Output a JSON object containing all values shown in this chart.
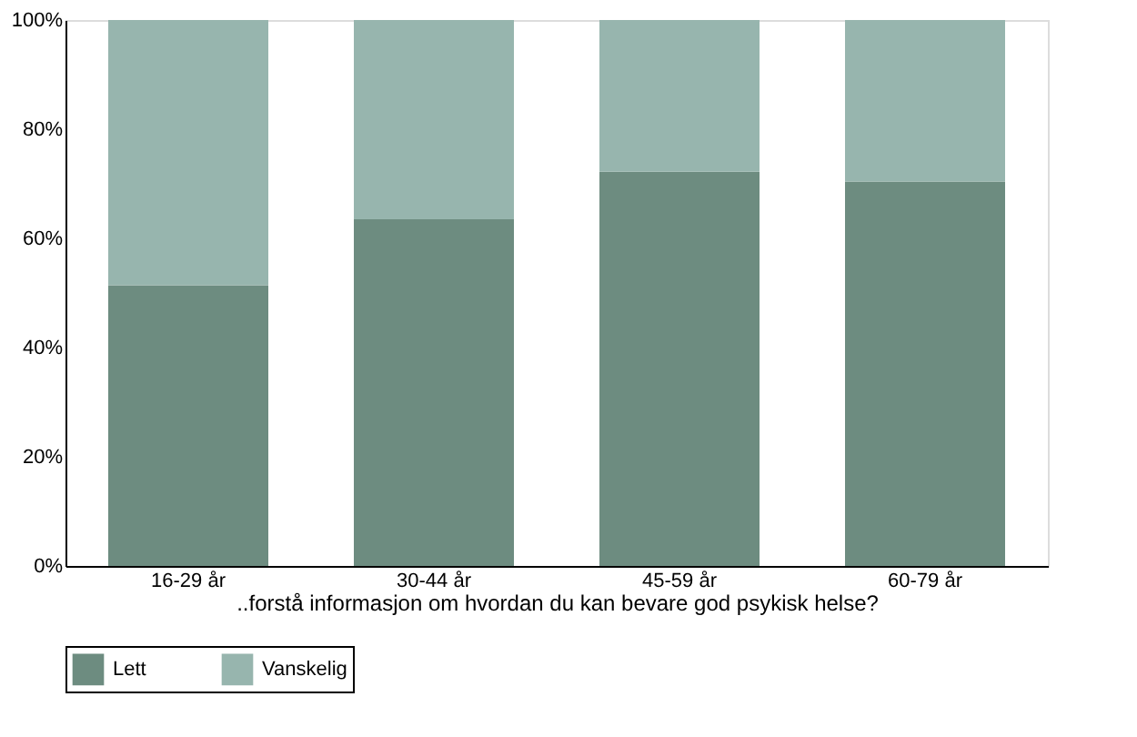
{
  "chart_data": {
    "type": "bar",
    "stacked": true,
    "xlabel": "..forstå informasjon om hvordan du kan bevare god psykisk helse?",
    "categories": [
      "16-29 år",
      "30-44 år",
      "45-59 år",
      "60-79 år"
    ],
    "series": [
      {
        "name": "Lett",
        "color": "#6d8c80",
        "values": [
          51.4,
          63.5,
          72.2,
          70.4
        ]
      },
      {
        "name": "Vanskelig",
        "color": "#97b5ae",
        "values": [
          48.6,
          36.5,
          27.8,
          29.6
        ]
      }
    ],
    "ylim": [
      0,
      100
    ],
    "yticks": [
      {
        "value": 0,
        "label": "0%"
      },
      {
        "value": 20,
        "label": "20%"
      },
      {
        "value": 40,
        "label": "40%"
      },
      {
        "value": 60,
        "label": "60%"
      },
      {
        "value": 80,
        "label": "80%"
      },
      {
        "value": 100,
        "label": "100%"
      }
    ],
    "grid": false,
    "legend": "bottom"
  }
}
